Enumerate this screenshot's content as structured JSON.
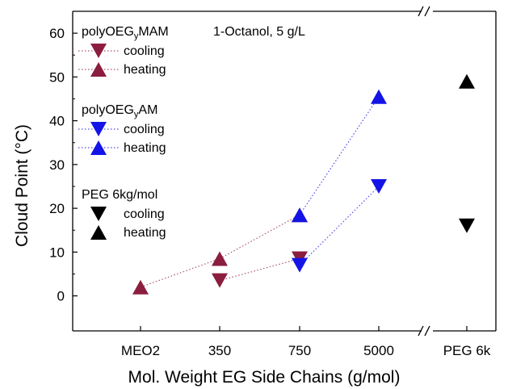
{
  "chart_data": {
    "type": "scatter",
    "title": "",
    "xlabel": "Mol. Weight EG Side Chains (g/mol)",
    "ylabel": "Cloud Point (°C)",
    "ylim": [
      -8,
      65
    ],
    "yticks": [
      0,
      10,
      20,
      30,
      40,
      50,
      60
    ],
    "categories": [
      "MEO2",
      "350",
      "750",
      "5000",
      "PEG 6k"
    ],
    "annotation": "1-Octanol, 5 g/L",
    "axis_break": true,
    "grid": false,
    "legend_placement": "top-left",
    "series": [
      {
        "group": "polyOEGyMAM",
        "group_base": "polyOEG",
        "group_sub": "y",
        "group_suffix": "MAM",
        "name": "cooling",
        "marker": "triangle-down",
        "color": "#8B1E3F",
        "linestyle": "dotted",
        "x": [
          "350",
          "750"
        ],
        "values": [
          3.5,
          8.5
        ]
      },
      {
        "group": "polyOEGyMAM",
        "group_base": "polyOEG",
        "group_sub": "y",
        "group_suffix": "MAM",
        "name": "heating",
        "marker": "triangle-up",
        "color": "#8B1E3F",
        "linestyle": "dotted",
        "x": [
          "MEO2",
          "350",
          "750"
        ],
        "values": [
          2,
          8.5,
          18.5
        ]
      },
      {
        "group": "polyOEGyAM",
        "group_base": "polyOEG",
        "group_sub": "y",
        "group_suffix": "AM",
        "name": "cooling",
        "marker": "triangle-down",
        "color": "#1414E6",
        "linestyle": "dotted",
        "x": [
          "750",
          "5000"
        ],
        "values": [
          7,
          25
        ]
      },
      {
        "group": "polyOEGyAM",
        "group_base": "polyOEG",
        "group_sub": "y",
        "group_suffix": "AM",
        "name": "heating",
        "marker": "triangle-up",
        "color": "#1414E6",
        "linestyle": "dotted",
        "x": [
          "750",
          "5000"
        ],
        "values": [
          18.5,
          45.5
        ]
      },
      {
        "group": "PEG 6kg/mol",
        "group_base": "PEG 6kg/mol",
        "group_sub": "",
        "group_suffix": "",
        "name": "cooling",
        "marker": "triangle-down",
        "color": "#000000",
        "linestyle": "none",
        "x": [
          "PEG 6k"
        ],
        "values": [
          16
        ]
      },
      {
        "group": "PEG 6kg/mol",
        "group_base": "PEG 6kg/mol",
        "group_sub": "",
        "group_suffix": "",
        "name": "heating",
        "marker": "triangle-up",
        "color": "#000000",
        "linestyle": "none",
        "x": [
          "PEG 6k"
        ],
        "values": [
          49
        ]
      }
    ]
  }
}
